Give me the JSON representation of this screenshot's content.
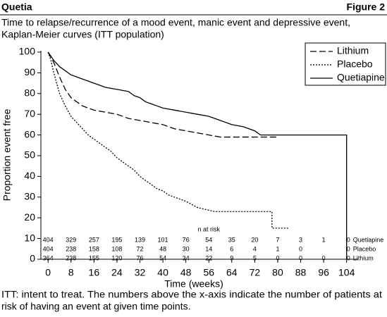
{
  "chart_data": {
    "type": "line",
    "header_left": "Quetia",
    "header_right": "Figure 2",
    "title_lines": [
      "Time to relapse/recurrence of a mood event, manic event and depressive event,",
      "Kaplan-Meier curves (ITT population)"
    ],
    "y_label": "Proportion event free",
    "x_label": "Time (weeks)",
    "note_lines": [
      "ITT: intent to treat. The numbers above the x-axis indicate the number of patients at",
      "risk of having an event at given time points."
    ],
    "xlim": [
      -2.5,
      108
    ],
    "ylim": [
      0,
      100
    ],
    "xticks": [
      0,
      8,
      16,
      24,
      32,
      40,
      48,
      56,
      64,
      72,
      80,
      88,
      96,
      104
    ],
    "yticks": [
      0,
      10,
      20,
      30,
      40,
      50,
      60,
      70,
      80,
      90,
      100
    ],
    "series": [
      {
        "name": "Lithium",
        "color": "#000000",
        "dash": "9,4",
        "x": [
          0,
          2,
          4,
          6,
          8,
          10,
          12,
          16,
          20,
          24,
          28,
          32,
          36,
          40,
          44,
          48,
          52,
          56,
          60,
          80
        ],
        "values": [
          100,
          95,
          88,
          82,
          78,
          76,
          74,
          72,
          71,
          70,
          68,
          67,
          66,
          65,
          63,
          62,
          61,
          60,
          59,
          59
        ]
      },
      {
        "name": "Placebo",
        "color": "#000000",
        "dash": "2,2",
        "x": [
          0,
          1,
          2,
          3,
          4,
          6,
          8,
          10,
          12,
          14,
          16,
          18,
          20,
          22,
          24,
          26,
          28,
          30,
          32,
          34,
          36,
          38,
          40,
          42,
          44,
          48,
          52,
          58,
          78,
          78,
          84
        ],
        "values": [
          100,
          96,
          90,
          85,
          80,
          74,
          69,
          66,
          63,
          60,
          58,
          56,
          54,
          52,
          49,
          47,
          45,
          43,
          40,
          38,
          36,
          34,
          33,
          31,
          30,
          28,
          25,
          23,
          23,
          15,
          15
        ]
      },
      {
        "name": "Quetiapine",
        "color": "#000000",
        "dash": "",
        "x": [
          0,
          1,
          2,
          4,
          6,
          8,
          10,
          12,
          14,
          16,
          18,
          20,
          24,
          28,
          30,
          32,
          34,
          36,
          38,
          40,
          44,
          48,
          52,
          56,
          60,
          64,
          68,
          72,
          74,
          104,
          104
        ],
        "values": [
          100,
          98,
          96,
          93,
          91,
          89,
          88,
          87,
          86,
          85,
          84,
          83,
          82,
          81,
          79,
          78,
          76,
          75,
          74,
          73,
          72,
          71,
          70,
          69,
          67,
          65,
          64,
          62,
          60,
          60,
          0
        ]
      }
    ],
    "risk_title": "n at risk",
    "risk": [
      {
        "name": "Quetiapine",
        "values": [
          404,
          329,
          257,
          195,
          139,
          101,
          76,
          54,
          35,
          20,
          7,
          3,
          1,
          0
        ]
      },
      {
        "name": "Placebo",
        "values": [
          404,
          238,
          158,
          108,
          72,
          48,
          30,
          14,
          6,
          4,
          1,
          0,
          null,
          0
        ]
      },
      {
        "name": "Lithium",
        "values": [
          364,
          238,
          155,
          120,
          76,
          54,
          34,
          22,
          9,
          5,
          0,
          0,
          0,
          0
        ]
      }
    ]
  }
}
